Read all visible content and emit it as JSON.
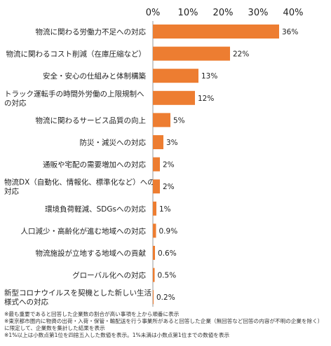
{
  "chart_data": {
    "type": "bar",
    "orientation": "horizontal",
    "xlim": [
      0,
      40
    ],
    "ticks": [
      "0%",
      "10%",
      "20%",
      "30%",
      "40%"
    ],
    "tick_values": [
      0,
      10,
      20,
      30,
      40
    ],
    "bar_color": "#ED7D31",
    "grid": false,
    "categories": [
      [
        "物流に関わる労働力不足への対応"
      ],
      [
        "物流に関わるコスト削減（在庫圧縮など）"
      ],
      [
        "安全・安心の仕組みと体制構築"
      ],
      [
        "トラック運転手の時間外労働の上限規制へ",
        "の対応"
      ],
      [
        "物流に関わるサービス品質の向上"
      ],
      [
        "防災・減災への対応"
      ],
      [
        "通販や宅配の需要増加への対応"
      ],
      [
        "物流DX（自動化、情報化、標準化など）への",
        "対応"
      ],
      [
        "環境負荷軽減、SDGsへの対応"
      ],
      [
        "人口減少・高齢化が進む地域への対応"
      ],
      [
        "物流施設が立地する地域への貢献"
      ],
      [
        "グローバル化への対応"
      ],
      [
        "新型コロナウイルスを契機とした新しい生活",
        "様式への対応"
      ]
    ],
    "values": [
      36,
      22,
      13,
      12,
      5,
      3,
      2,
      2,
      1,
      0.9,
      0.6,
      0.5,
      0.2
    ],
    "value_labels": [
      "36%",
      "22%",
      "13%",
      "12%",
      "5%",
      "3%",
      "2%",
      "2%",
      "1%",
      "0.9%",
      "0.6%",
      "0.5%",
      "0.2%"
    ]
  },
  "notes": [
    "※最も重要であると回答した企業数の割合が高い事項を上から順番に表示",
    "※東京都市圏内に物資の出荷・入荷・保管・輸配送を行う事業所があると回答した企業（無回答など回答の内容が不明の企業を除く）に限定して、企業数を集計した結果を表示",
    "※1%以上は小数点第1位を四捨五入した数値を表示。1%未満は小数点第1位までの数値を表示"
  ]
}
